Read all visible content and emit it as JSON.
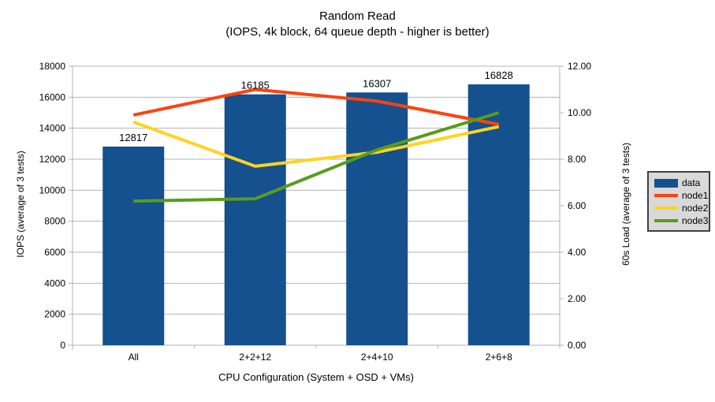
{
  "title": {
    "line1": "Random Read",
    "line2": "(IOPS, 4k block, 64 queue depth - higher is better)"
  },
  "chart_data": {
    "type": "bar+line-combo",
    "categories": [
      "All",
      "2+2+12",
      "2+4+10",
      "2+6+8"
    ],
    "bar_series": {
      "name": "data",
      "axis": "left",
      "values": [
        12817,
        16185,
        16307,
        16828
      ],
      "data_labels": [
        "12817",
        "16185",
        "16307",
        "16828"
      ],
      "color": "#15508F"
    },
    "line_series": [
      {
        "name": "node1",
        "axis": "right",
        "values": [
          9.9,
          11.0,
          10.5,
          9.5
        ],
        "color": "#FF420E"
      },
      {
        "name": "node2",
        "axis": "right",
        "values": [
          9.6,
          7.7,
          8.3,
          9.4
        ],
        "color": "#FFD320"
      },
      {
        "name": "node3",
        "axis": "right",
        "values": [
          6.2,
          6.3,
          8.4,
          10.0
        ],
        "color": "#579D1C"
      }
    ],
    "left_axis": {
      "title": "IOPS (average of 3 tests)",
      "min": 0,
      "max": 18000,
      "step": 2000,
      "tick_labels": [
        "0",
        "2000",
        "4000",
        "6000",
        "8000",
        "10000",
        "12000",
        "14000",
        "16000",
        "18000"
      ]
    },
    "right_axis": {
      "title": "60s Load (average of 3 tests)",
      "min": 0,
      "max": 12,
      "step": 2,
      "tick_labels": [
        "0.00",
        "2.00",
        "4.00",
        "6.00",
        "8.00",
        "10.00",
        "12.00"
      ]
    },
    "x_axis": {
      "title": "CPU Configuration (System + OSD + VMs)"
    },
    "legend": {
      "position": "right"
    },
    "grid": "horizontal-major",
    "colors": {
      "background": "#FFFFFF",
      "grid": "#B3B3B3",
      "axis": "#B3B3B3",
      "text": "#000000",
      "legend_bg": "#D9D9D9",
      "legend_border": "#404040"
    }
  }
}
